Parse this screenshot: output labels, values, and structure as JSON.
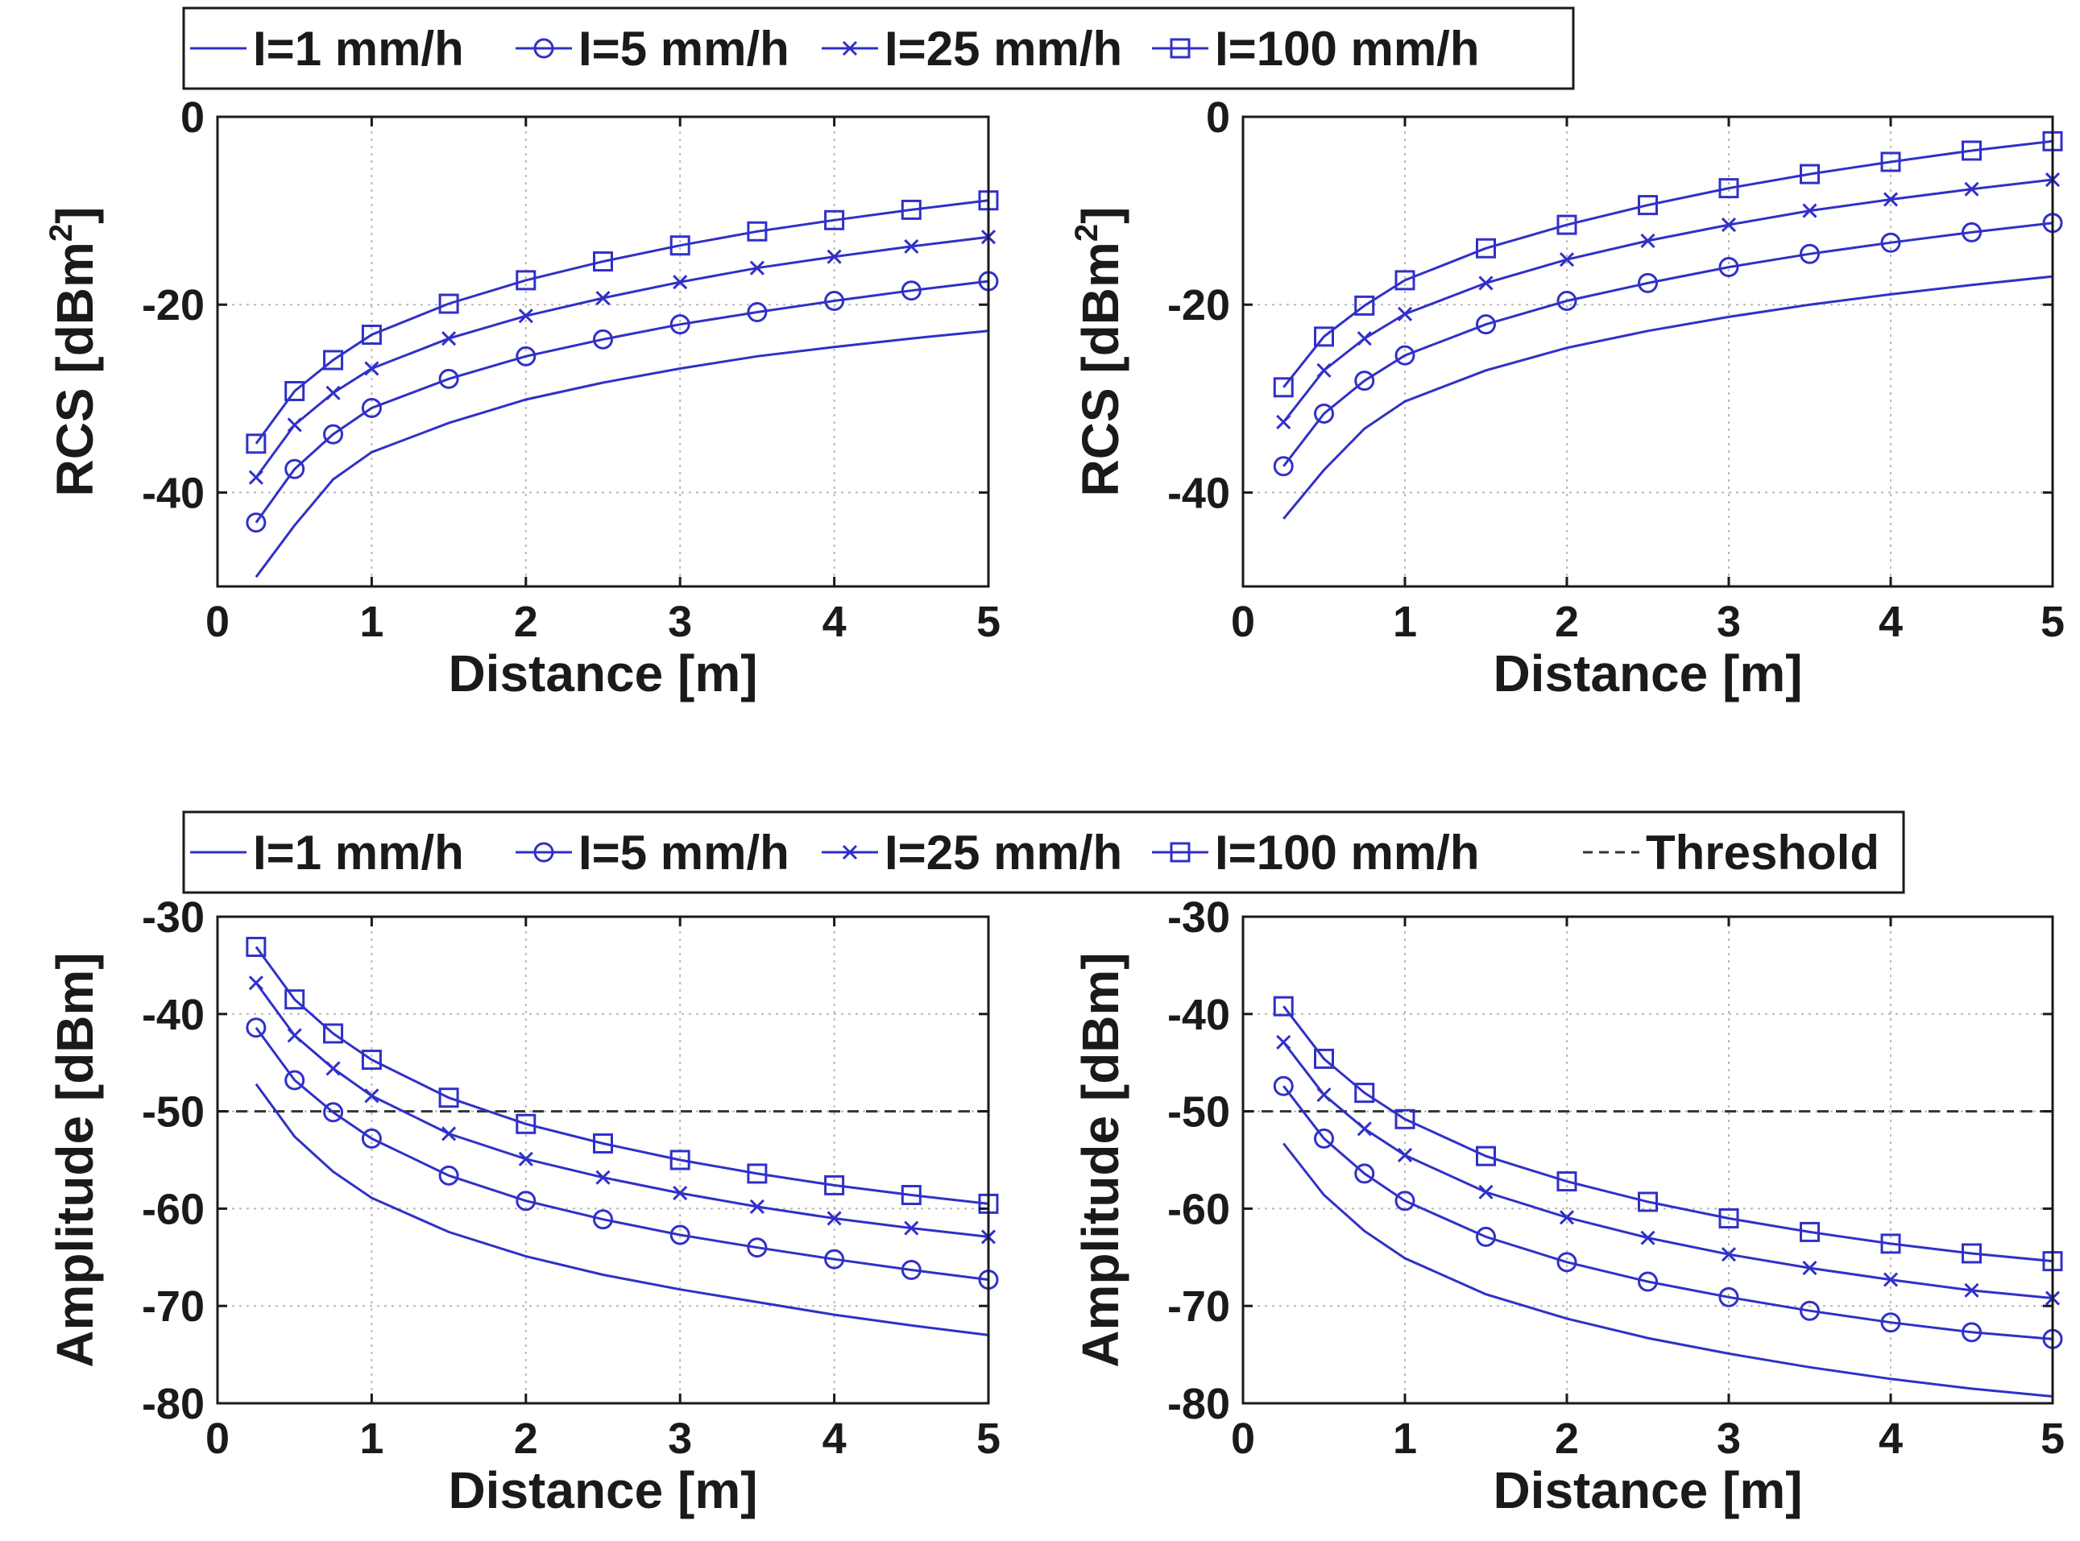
{
  "colors": {
    "series": "#3030c8",
    "threshold": "#333333",
    "axis": "#1a1a1a",
    "grid": "#b8b8b8"
  },
  "legends": {
    "top": {
      "entries": [
        "I=1 mm/h",
        "I=5 mm/h",
        "I=25 mm/h",
        "I=100 mm/h"
      ],
      "markers": [
        "none",
        "circle",
        "x",
        "square"
      ]
    },
    "bottom": {
      "entries": [
        "I=1 mm/h",
        "I=5 mm/h",
        "I=25 mm/h",
        "I=100 mm/h",
        "Threshold"
      ],
      "markers": [
        "none",
        "circle",
        "x",
        "square",
        "dashed"
      ]
    }
  },
  "chart_data": [
    {
      "type": "line",
      "name": "rcs-left",
      "xlabel": "Distance [m]",
      "ylabel": "RCS [dBm",
      "ylabel_sup": "2",
      "ylabel_suffix": "]",
      "xlim": [
        0,
        5
      ],
      "ylim": [
        -50,
        0
      ],
      "xticks": [
        0,
        1,
        2,
        3,
        4,
        5
      ],
      "xtick_labels": [
        "0",
        "1",
        "2",
        "3",
        "4",
        "5"
      ],
      "yticks": [
        -40,
        -20,
        0
      ],
      "ytick_labels": [
        "-40",
        "-20",
        "0"
      ],
      "grid": true,
      "x": [
        0.25,
        0.5,
        0.75,
        1,
        1.5,
        2,
        2.5,
        3,
        3.5,
        4,
        4.5,
        5
      ],
      "series": [
        {
          "name": "I=1 mm/h",
          "marker": "none",
          "values": [
            -49.0,
            -43.5,
            -38.6,
            -35.7,
            -32.6,
            -30.1,
            -28.3,
            -26.8,
            -25.5,
            -24.5,
            -23.6,
            -22.8
          ]
        },
        {
          "name": "I=5 mm/h",
          "marker": "circle",
          "values": [
            -43.2,
            -37.5,
            -33.8,
            -31.0,
            -27.9,
            -25.5,
            -23.7,
            -22.1,
            -20.8,
            -19.6,
            -18.5,
            -17.5
          ]
        },
        {
          "name": "I=25 mm/h",
          "marker": "x",
          "values": [
            -38.4,
            -32.8,
            -29.4,
            -26.8,
            -23.6,
            -21.2,
            -19.3,
            -17.6,
            -16.1,
            -14.9,
            -13.8,
            -12.8
          ]
        },
        {
          "name": "I=100 mm/h",
          "marker": "square",
          "values": [
            -34.8,
            -29.2,
            -25.9,
            -23.2,
            -19.9,
            -17.4,
            -15.4,
            -13.7,
            -12.2,
            -11.0,
            -9.9,
            -8.9
          ]
        }
      ]
    },
    {
      "type": "line",
      "name": "rcs-right",
      "xlabel": "Distance [m]",
      "ylabel": "RCS [dBm",
      "ylabel_sup": "2",
      "ylabel_suffix": "]",
      "xlim": [
        0,
        5
      ],
      "ylim": [
        -50,
        0
      ],
      "xticks": [
        0,
        1,
        2,
        3,
        4,
        5
      ],
      "xtick_labels": [
        "0",
        "1",
        "2",
        "3",
        "4",
        "5"
      ],
      "yticks": [
        -40,
        -20,
        0
      ],
      "ytick_labels": [
        "-40",
        "-20",
        "0"
      ],
      "grid": true,
      "x": [
        0.25,
        0.5,
        0.75,
        1,
        1.5,
        2,
        2.5,
        3,
        3.5,
        4,
        4.5,
        5
      ],
      "series": [
        {
          "name": "I=1 mm/h",
          "marker": "none",
          "values": [
            -42.8,
            -37.6,
            -33.2,
            -30.3,
            -27.0,
            -24.6,
            -22.8,
            -21.3,
            -20.0,
            -18.9,
            -17.9,
            -17.0
          ]
        },
        {
          "name": "I=5 mm/h",
          "marker": "circle",
          "values": [
            -37.2,
            -31.6,
            -28.1,
            -25.4,
            -22.1,
            -19.6,
            -17.7,
            -16.0,
            -14.6,
            -13.4,
            -12.3,
            -11.3
          ]
        },
        {
          "name": "I=25 mm/h",
          "marker": "x",
          "values": [
            -32.5,
            -27.0,
            -23.6,
            -21.0,
            -17.7,
            -15.2,
            -13.2,
            -11.5,
            -10.0,
            -8.8,
            -7.7,
            -6.7
          ]
        },
        {
          "name": "I=100 mm/h",
          "marker": "square",
          "values": [
            -28.8,
            -23.4,
            -20.1,
            -17.4,
            -14.0,
            -11.5,
            -9.4,
            -7.6,
            -6.1,
            -4.8,
            -3.6,
            -2.6
          ]
        }
      ]
    },
    {
      "type": "line",
      "name": "amplitude-left",
      "xlabel": "Distance [m]",
      "ylabel": "Amplitude [dBm]",
      "xlim": [
        0,
        5
      ],
      "ylim": [
        -80,
        -30
      ],
      "xticks": [
        0,
        1,
        2,
        3,
        4,
        5
      ],
      "xtick_labels": [
        "0",
        "1",
        "2",
        "3",
        "4",
        "5"
      ],
      "yticks": [
        -80,
        -70,
        -60,
        -50,
        -40,
        -30
      ],
      "ytick_labels": [
        "-80",
        "-70",
        "-60",
        "-50",
        "-40",
        "-30"
      ],
      "grid": true,
      "threshold": -50,
      "x": [
        0.25,
        0.5,
        0.75,
        1,
        1.5,
        2,
        2.5,
        3,
        3.5,
        4,
        4.5,
        5
      ],
      "series": [
        {
          "name": "I=1 mm/h",
          "marker": "none",
          "values": [
            -47.2,
            -52.6,
            -56.2,
            -58.9,
            -62.4,
            -64.9,
            -66.8,
            -68.3,
            -69.6,
            -70.9,
            -72.0,
            -73.0
          ]
        },
        {
          "name": "I=5 mm/h",
          "marker": "circle",
          "values": [
            -41.4,
            -46.8,
            -50.1,
            -52.8,
            -56.6,
            -59.2,
            -61.1,
            -62.7,
            -64.0,
            -65.2,
            -66.3,
            -67.3
          ]
        },
        {
          "name": "I=25 mm/h",
          "marker": "x",
          "values": [
            -36.8,
            -42.2,
            -45.6,
            -48.4,
            -52.3,
            -54.9,
            -56.8,
            -58.4,
            -59.8,
            -61.0,
            -62.0,
            -62.9
          ]
        },
        {
          "name": "I=100 mm/h",
          "marker": "square",
          "values": [
            -33.1,
            -38.5,
            -42.0,
            -44.7,
            -48.6,
            -51.3,
            -53.3,
            -55.0,
            -56.4,
            -57.6,
            -58.6,
            -59.5
          ]
        }
      ]
    },
    {
      "type": "line",
      "name": "amplitude-right",
      "xlabel": "Distance [m]",
      "ylabel": "Amplitude [dBm]",
      "xlim": [
        0,
        5
      ],
      "ylim": [
        -80,
        -30
      ],
      "xticks": [
        0,
        1,
        2,
        3,
        4,
        5
      ],
      "xtick_labels": [
        "0",
        "1",
        "2",
        "3",
        "4",
        "5"
      ],
      "yticks": [
        -80,
        -70,
        -60,
        -50,
        -40,
        -30
      ],
      "ytick_labels": [
        "-80",
        "-70",
        "-60",
        "-50",
        "-40",
        "-30"
      ],
      "grid": true,
      "threshold": -50,
      "x": [
        0.25,
        0.5,
        0.75,
        1,
        1.5,
        2,
        2.5,
        3,
        3.5,
        4,
        4.5,
        5
      ],
      "series": [
        {
          "name": "I=1 mm/h",
          "marker": "none",
          "values": [
            -53.3,
            -58.6,
            -62.3,
            -65.1,
            -68.8,
            -71.3,
            -73.3,
            -74.9,
            -76.3,
            -77.5,
            -78.5,
            -79.3
          ]
        },
        {
          "name": "I=5 mm/h",
          "marker": "circle",
          "values": [
            -47.4,
            -52.8,
            -56.4,
            -59.2,
            -62.9,
            -65.5,
            -67.5,
            -69.1,
            -70.5,
            -71.7,
            -72.7,
            -73.4
          ]
        },
        {
          "name": "I=25 mm/h",
          "marker": "x",
          "values": [
            -42.9,
            -48.3,
            -51.8,
            -54.5,
            -58.3,
            -60.9,
            -63.0,
            -64.7,
            -66.1,
            -67.3,
            -68.4,
            -69.2
          ]
        },
        {
          "name": "I=100 mm/h",
          "marker": "square",
          "values": [
            -39.2,
            -44.6,
            -48.1,
            -50.8,
            -54.6,
            -57.2,
            -59.3,
            -61.0,
            -62.4,
            -63.6,
            -64.6,
            -65.4
          ]
        }
      ]
    }
  ]
}
